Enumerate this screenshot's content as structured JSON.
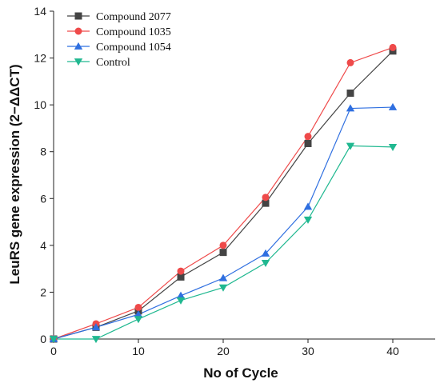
{
  "chart_data": {
    "type": "line",
    "xlabel": "No of Cycle",
    "ylabel": "LeuRS gene expression (2−ΔΔCT)",
    "xlim": [
      0,
      45
    ],
    "ylim": [
      0,
      14
    ],
    "xticks": [
      0,
      10,
      20,
      30,
      40
    ],
    "yticks": [
      0,
      2,
      4,
      6,
      8,
      10,
      12,
      14
    ],
    "grid": false,
    "legend_position": "top-left",
    "x": [
      0,
      5,
      10,
      15,
      20,
      25,
      30,
      35,
      40
    ],
    "series": [
      {
        "name": "Compound 2077",
        "color": "#444444",
        "marker": "square",
        "values": [
          0,
          0.5,
          1.2,
          2.65,
          3.7,
          5.8,
          8.35,
          10.5,
          12.3
        ]
      },
      {
        "name": "Compound 1035",
        "color": "#ef4a4a",
        "marker": "circle",
        "values": [
          0,
          0.65,
          1.35,
          2.9,
          4.0,
          6.05,
          8.65,
          11.8,
          12.45
        ]
      },
      {
        "name": "Compound 1054",
        "color": "#2f6fe0",
        "marker": "triangle-up",
        "values": [
          0,
          0.5,
          1.05,
          1.85,
          2.6,
          3.65,
          5.65,
          9.85,
          9.9
        ]
      },
      {
        "name": "Control",
        "color": "#20b890",
        "marker": "triangle-down",
        "values": [
          0,
          0.0,
          0.85,
          1.65,
          2.2,
          3.25,
          5.1,
          8.25,
          8.2
        ]
      }
    ]
  }
}
